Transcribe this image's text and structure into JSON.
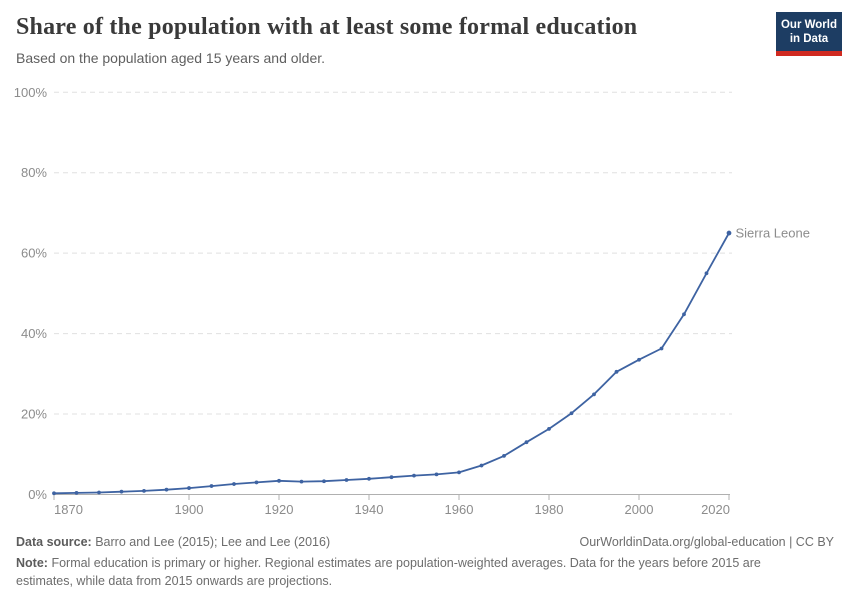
{
  "header": {
    "title": "Share of the population with at least some formal education",
    "subtitle": "Based on the population aged 15 years and older.",
    "logo": {
      "line1": "Our World",
      "line2": "in Data"
    }
  },
  "chart_data": {
    "type": "line",
    "title": "Share of the population with at least some formal education",
    "xlabel": "",
    "ylabel": "",
    "xlim": [
      1870,
      2020
    ],
    "ylim": [
      0,
      100
    ],
    "xticks": [
      1870,
      1900,
      1920,
      1940,
      1960,
      1980,
      2000,
      2020
    ],
    "yticks": [
      0,
      20,
      40,
      60,
      80,
      100
    ],
    "ytick_suffix": "%",
    "grid": "horizontal-dashed",
    "legend_position": "end-of-line-label",
    "series": [
      {
        "name": "Sierra Leone",
        "color": "#3e63a2",
        "x": [
          1870,
          1875,
          1880,
          1885,
          1890,
          1895,
          1900,
          1905,
          1910,
          1915,
          1920,
          1925,
          1930,
          1935,
          1940,
          1945,
          1950,
          1955,
          1960,
          1965,
          1970,
          1975,
          1980,
          1985,
          1990,
          1995,
          2000,
          2005,
          2010,
          2015,
          2020
        ],
        "y": [
          0.3,
          0.4,
          0.5,
          0.7,
          0.9,
          1.2,
          1.6,
          2.1,
          2.6,
          3.0,
          3.4,
          3.2,
          3.3,
          3.6,
          3.9,
          4.3,
          4.7,
          5.0,
          5.5,
          7.2,
          9.6,
          13.0,
          16.3,
          20.2,
          24.9,
          30.5,
          33.5,
          36.3,
          44.8,
          55.0,
          65.0
        ]
      }
    ]
  },
  "footer": {
    "datasource_label": "Data source:",
    "datasource_text": "Barro and Lee (2015); Lee and Lee (2016)",
    "link": "OurWorldinData.org/global-education | CC BY",
    "note_label": "Note:",
    "note_text": "Formal education is primary or higher. Regional estimates are population-weighted averages. Data for the years before 2015 are estimates, while data from 2015 onwards are projections."
  },
  "colors": {
    "line": "#3e63a2",
    "grid": "#e0e0e0",
    "axis": "#b0b0b0",
    "tick_text": "#8c8c8c",
    "title": "#3a3a3a",
    "subtitle": "#5f5f5f",
    "footer_text": "#6d6d6d",
    "logo_bg": "#1d3d63",
    "logo_red": "#d02a20"
  }
}
